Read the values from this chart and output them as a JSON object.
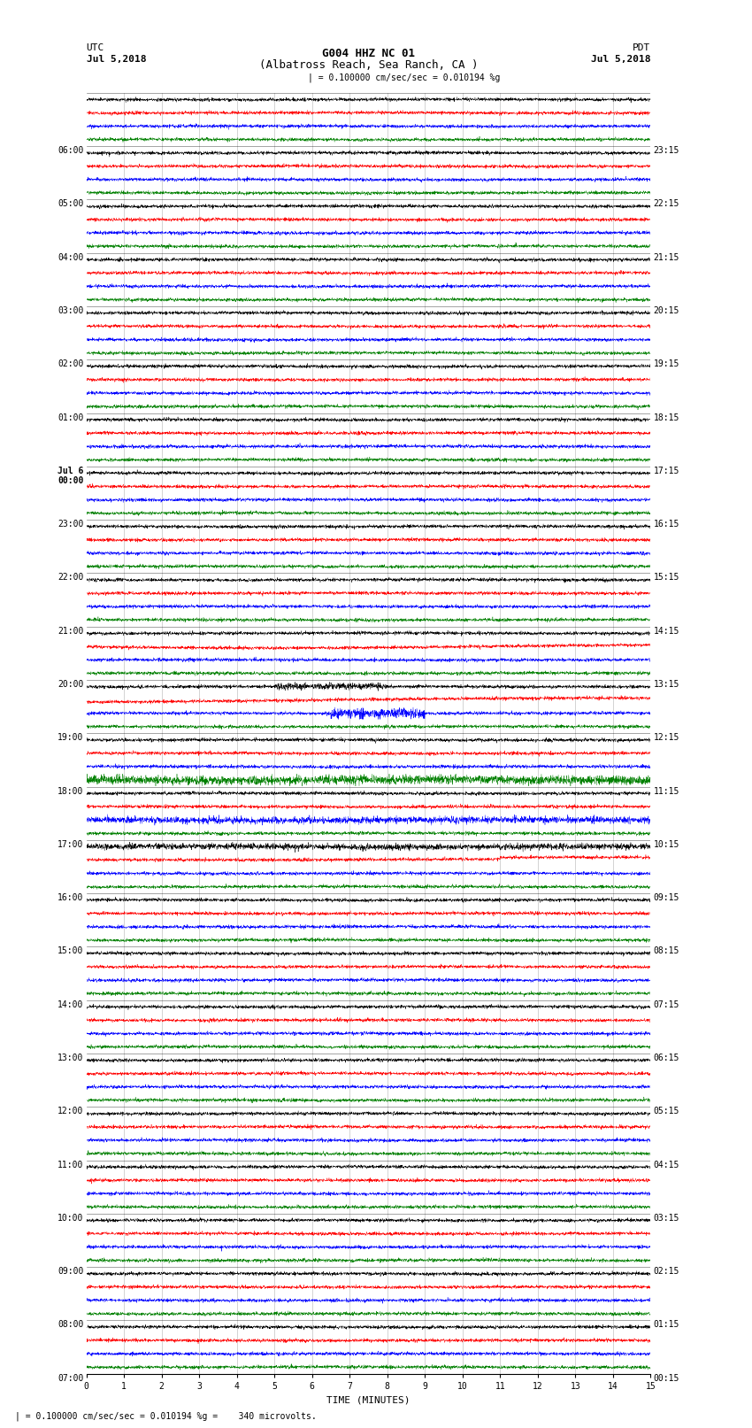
{
  "title_line1": "G004 HHZ NC 01",
  "title_line2": "(Albatross Reach, Sea Ranch, CA )",
  "scale_text": "| = 0.100000 cm/sec/sec = 0.010194 %g",
  "bottom_text": "| = 0.100000 cm/sec/sec = 0.010194 %g =    340 microvolts.",
  "utc_label": "UTC",
  "utc_date": "Jul 5,2018",
  "pdt_label": "PDT",
  "pdt_date": "Jul 5,2018",
  "xlabel": "TIME (MINUTES)",
  "xlim": [
    0,
    15
  ],
  "xticks": [
    0,
    1,
    2,
    3,
    4,
    5,
    6,
    7,
    8,
    9,
    10,
    11,
    12,
    13,
    14,
    15
  ],
  "bg_color": "#ffffff",
  "trace_colors": [
    "black",
    "red",
    "blue",
    "green"
  ],
  "left_times_utc": [
    "07:00",
    "08:00",
    "09:00",
    "10:00",
    "11:00",
    "12:00",
    "13:00",
    "14:00",
    "15:00",
    "16:00",
    "17:00",
    "18:00",
    "19:00",
    "20:00",
    "21:00",
    "22:00",
    "23:00",
    "Jul 6\n00:00",
    "01:00",
    "02:00",
    "03:00",
    "04:00",
    "05:00",
    "06:00"
  ],
  "right_times_pdt": [
    "00:15",
    "01:15",
    "02:15",
    "03:15",
    "04:15",
    "05:15",
    "06:15",
    "07:15",
    "08:15",
    "09:15",
    "10:15",
    "11:15",
    "12:15",
    "13:15",
    "14:15",
    "15:15",
    "16:15",
    "17:15",
    "18:15",
    "19:15",
    "20:15",
    "21:15",
    "22:15",
    "23:15"
  ],
  "num_rows": 24,
  "traces_per_row": 4,
  "noise_scale": 0.06,
  "figsize": [
    8.5,
    16.13
  ],
  "dpi": 100,
  "font_size_title": 9,
  "font_size_labels": 8,
  "font_size_ticks": 7,
  "font_family": "monospace"
}
